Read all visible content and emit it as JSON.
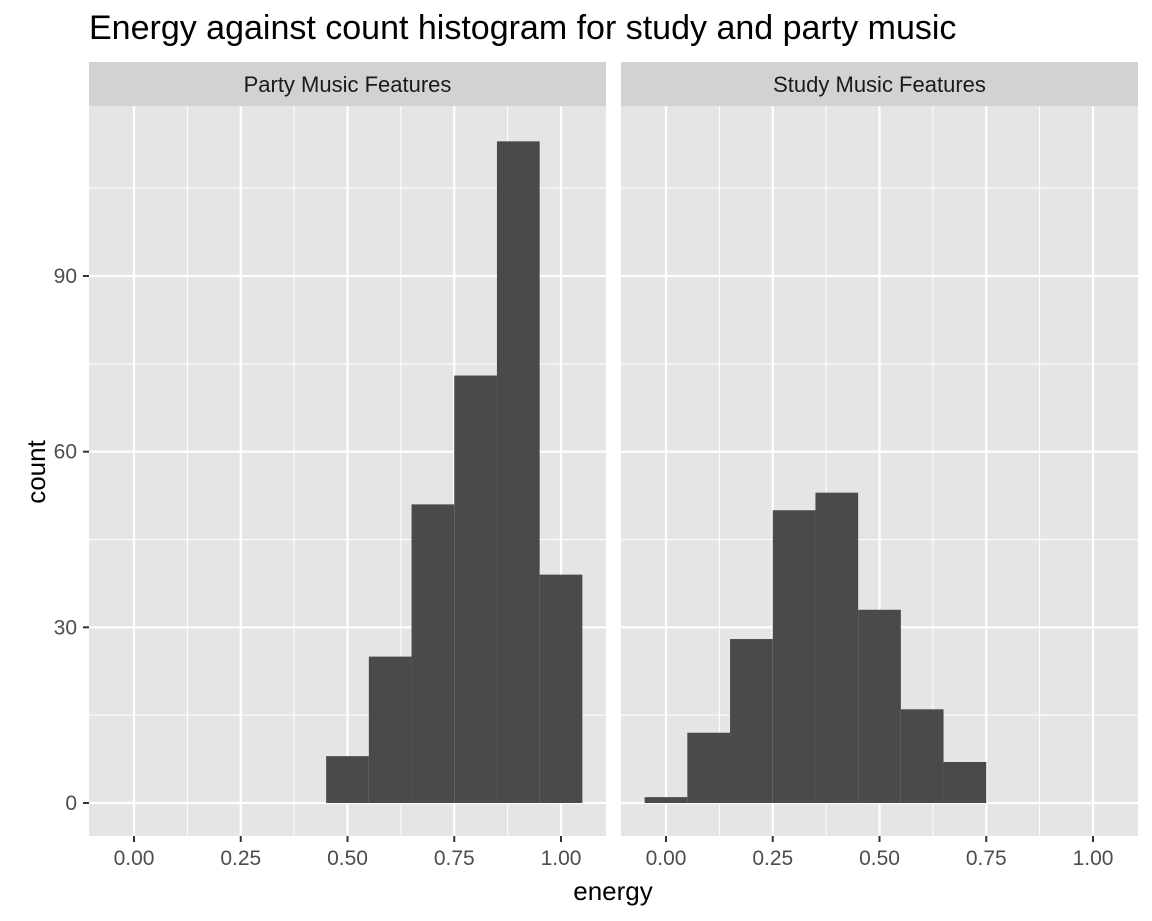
{
  "chart_data": {
    "type": "bar",
    "title": "Energy against count histogram for study and party music",
    "xlabel": "energy",
    "ylabel": "count",
    "xlim": [
      -0.1,
      1.1
    ],
    "ylim": [
      0,
      120
    ],
    "x_ticks": [
      0,
      0.25,
      0.5,
      0.75,
      1
    ],
    "x_tick_labels": [
      "0.00",
      "0.25",
      "0.50",
      "0.75",
      "1.00"
    ],
    "y_ticks": [
      0,
      30,
      60,
      90
    ],
    "y_tick_labels": [
      "0",
      "30",
      "60",
      "90"
    ],
    "bin_width": 0.1,
    "grid": true,
    "legend": "none",
    "colors": {
      "bar": "#4a4a4a",
      "panel_background": "#e5e5e5",
      "strip_background": "#d2d2d2",
      "grid": "#ffffff",
      "tick": "#333333"
    },
    "facets": [
      {
        "name": "Party Music Features",
        "bins": [
          {
            "x": 0.5,
            "count": 8
          },
          {
            "x": 0.6,
            "count": 25
          },
          {
            "x": 0.7,
            "count": 51
          },
          {
            "x": 0.8,
            "count": 73
          },
          {
            "x": 0.9,
            "count": 113
          },
          {
            "x": 1.0,
            "count": 39
          }
        ]
      },
      {
        "name": "Study Music Features",
        "bins": [
          {
            "x": 0.0,
            "count": 1
          },
          {
            "x": 0.1,
            "count": 12
          },
          {
            "x": 0.2,
            "count": 28
          },
          {
            "x": 0.3,
            "count": 50
          },
          {
            "x": 0.4,
            "count": 53
          },
          {
            "x": 0.5,
            "count": 33
          },
          {
            "x": 0.6,
            "count": 16
          },
          {
            "x": 0.7,
            "count": 7
          }
        ]
      }
    ]
  }
}
